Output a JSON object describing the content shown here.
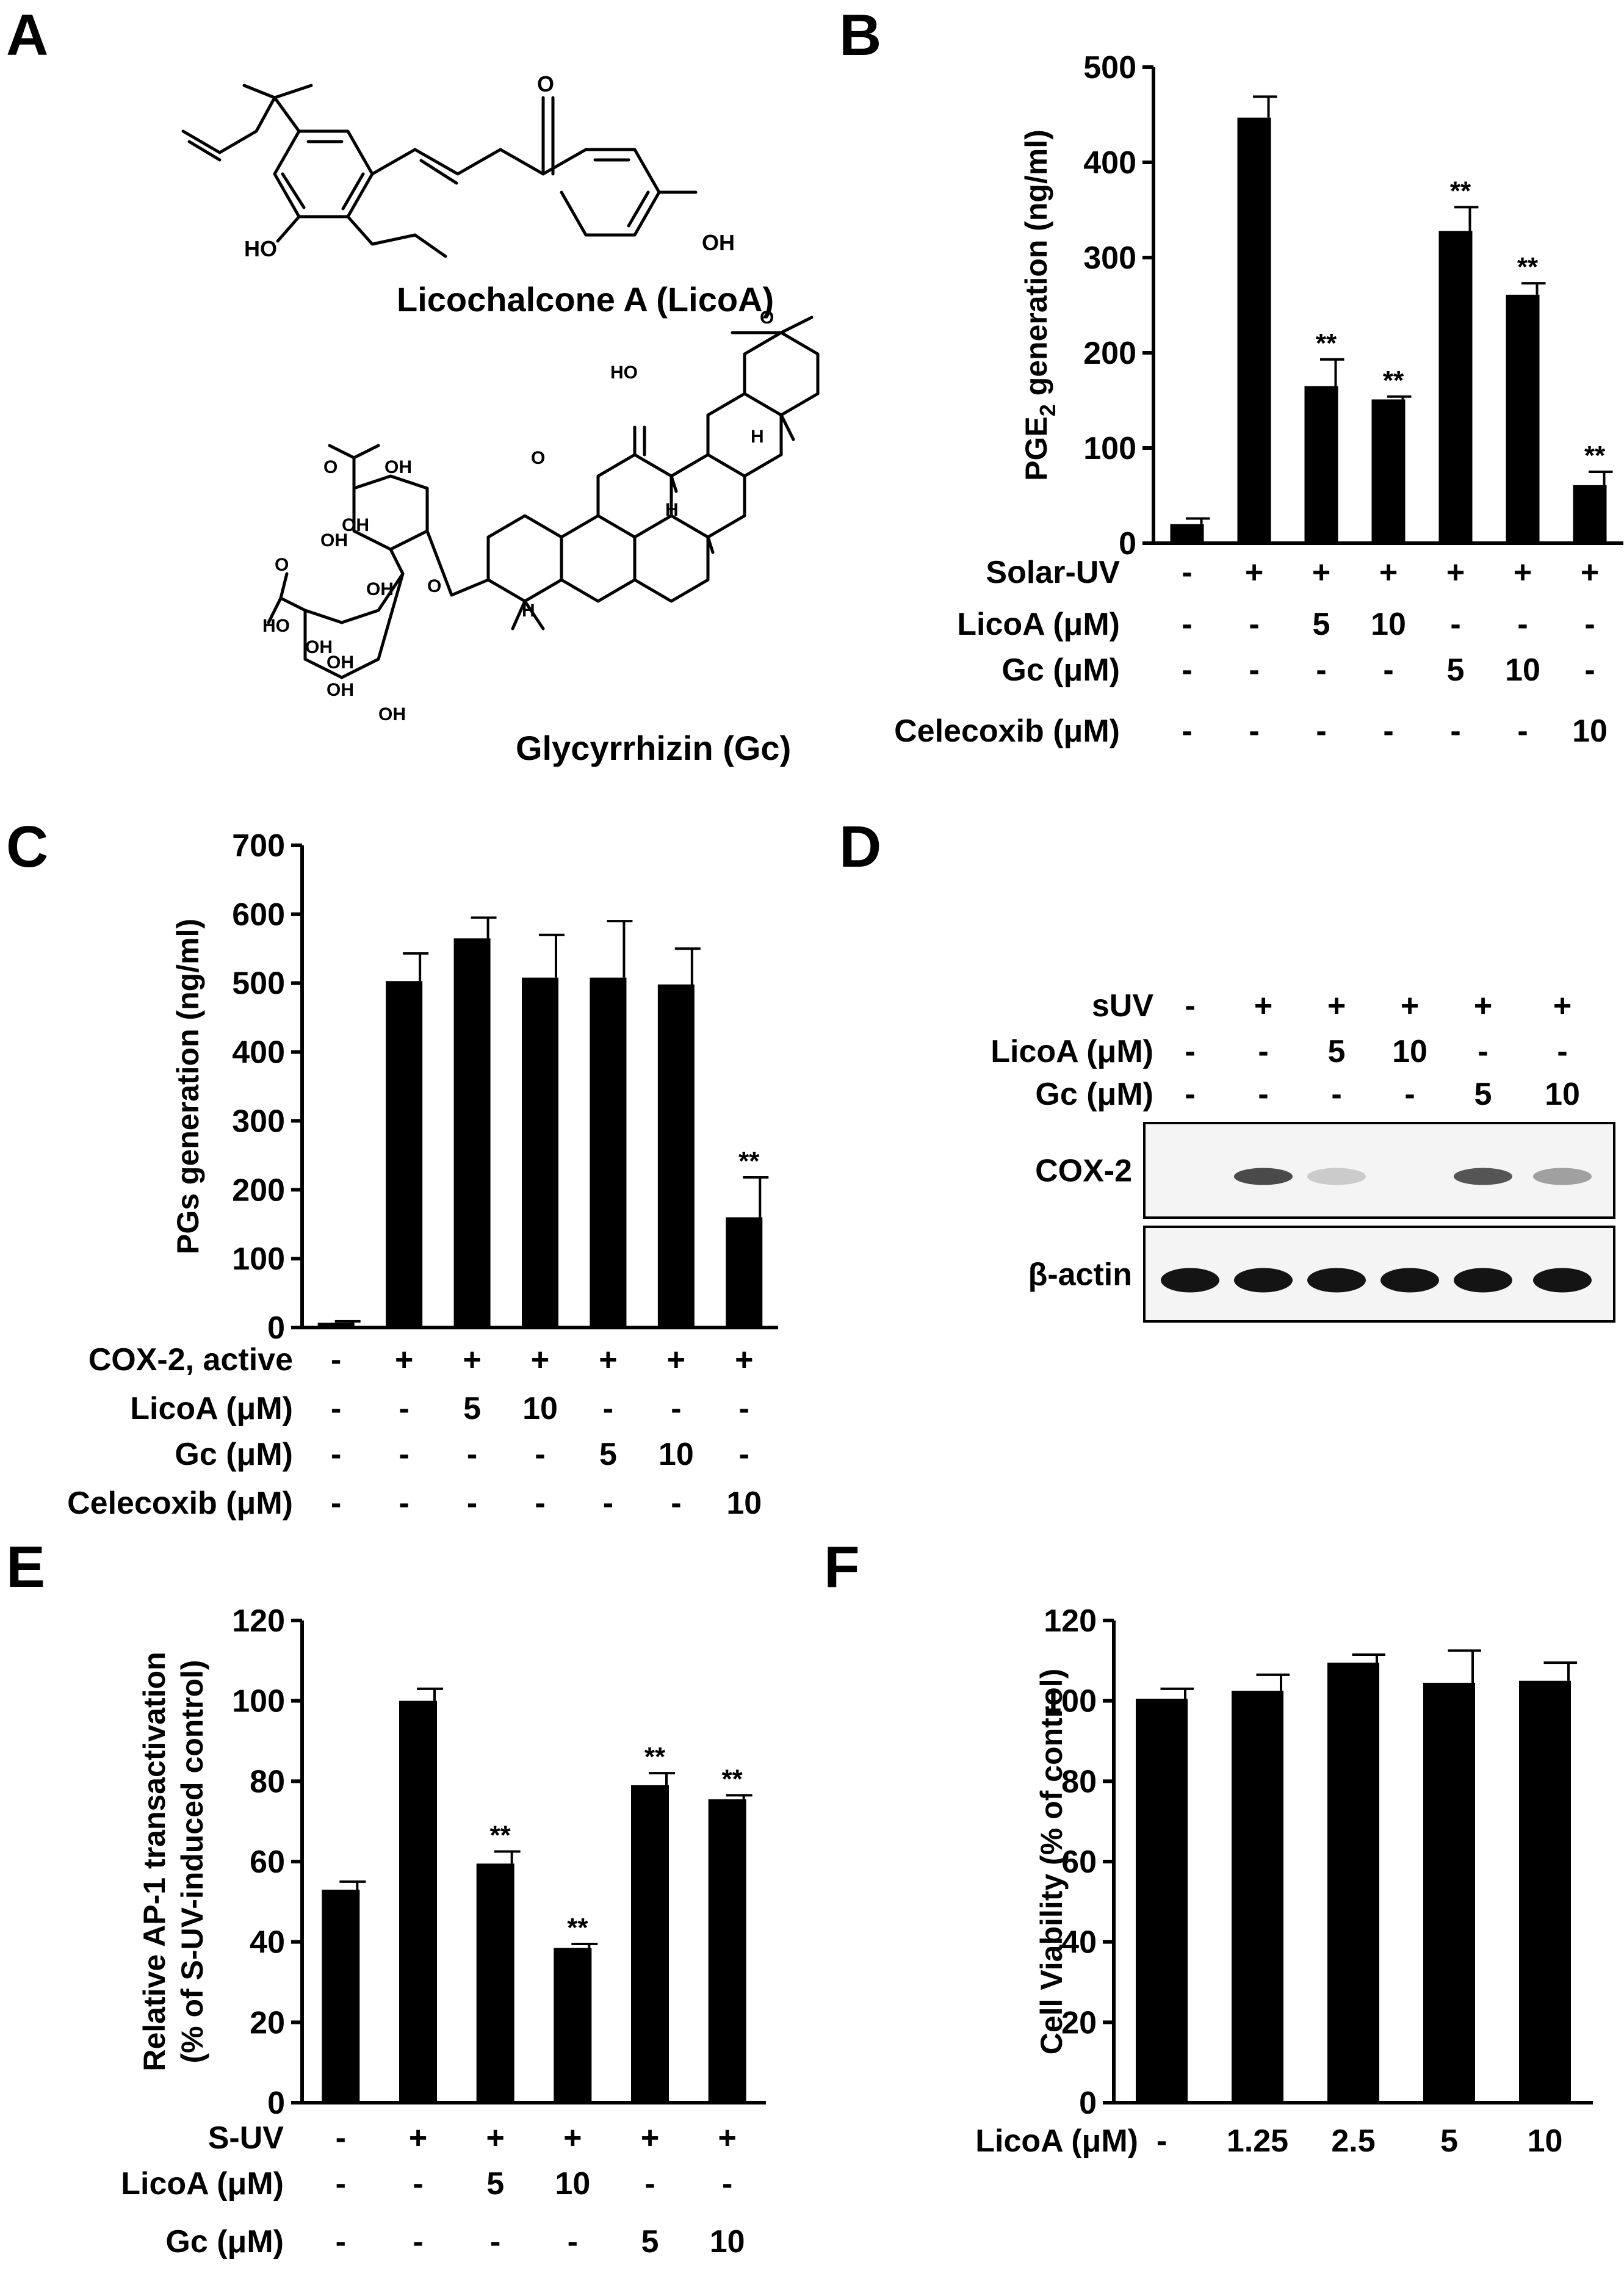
{
  "panels": {
    "A": {
      "letter": "A",
      "compound1": {
        "name": "Licochalcone A (LicoA)",
        "labels": [
          "O",
          "HO",
          "OH"
        ]
      },
      "compound2": {
        "name": "Glycyrrhizin (Gc)",
        "labels": [
          "HO",
          "O",
          "OH",
          "O",
          "OH",
          "OH",
          "OH",
          "O",
          "HO",
          "O",
          "OH",
          "OH",
          "OH",
          "OH",
          "O",
          "H",
          "H",
          "H"
        ]
      }
    },
    "B": {
      "letter": "B"
    },
    "C": {
      "letter": "C"
    },
    "D": {
      "letter": "D",
      "rows": [
        {
          "label": "sUV",
          "cells": [
            "-",
            "+",
            "+",
            "+",
            "+",
            "+"
          ]
        },
        {
          "label": "LicoA (μM)",
          "cells": [
            "-",
            "-",
            "5",
            "10",
            "-",
            "-"
          ]
        },
        {
          "label": "Gc (μM)",
          "cells": [
            "-",
            "-",
            "-",
            "-",
            "5",
            "10"
          ]
        }
      ],
      "blots": [
        {
          "label": "COX-2",
          "band_intensity": [
            0,
            0.75,
            0.15,
            0,
            0.7,
            0.35
          ]
        },
        {
          "label": "β-actin",
          "band_intensity": [
            1,
            1,
            1,
            1,
            1,
            1
          ]
        }
      ]
    },
    "E": {
      "letter": "E"
    },
    "F": {
      "letter": "F"
    }
  },
  "chart_data": [
    {
      "panel": "B",
      "type": "bar",
      "ylabel": "PGE2 generation (ng/ml)",
      "ylabel_parts": [
        "PGE",
        "2",
        " generation (ng/ml)"
      ],
      "ylim": [
        0,
        500
      ],
      "yticks": [
        "0",
        "100",
        "200",
        "300",
        "400",
        "500"
      ],
      "values": [
        20,
        447,
        165,
        151,
        328,
        261,
        61
      ],
      "errors": [
        6,
        22,
        28,
        3,
        25,
        12,
        14
      ],
      "annotations": [
        "",
        "",
        "**",
        "**",
        "**",
        "**",
        "**"
      ],
      "rows": [
        {
          "label": "Solar-UV",
          "cells": [
            "-",
            "+",
            "+",
            "+",
            "+",
            "+",
            "+"
          ]
        },
        {
          "label": "LicoA (μM)",
          "cells": [
            "-",
            "-",
            "5",
            "10",
            "-",
            "-",
            "-"
          ]
        },
        {
          "label": "Gc (μM)",
          "cells": [
            "-",
            "-",
            "-",
            "-",
            "5",
            "10",
            "-"
          ]
        },
        {
          "label": "Celecoxib (μM)",
          "cells": [
            "-",
            "-",
            "-",
            "-",
            "-",
            "-",
            "10"
          ]
        }
      ]
    },
    {
      "panel": "C",
      "type": "bar",
      "ylabel": "PGs generation (ng/ml)",
      "ylim": [
        0,
        700
      ],
      "yticks": [
        "0",
        "100",
        "200",
        "300",
        "400",
        "500",
        "600",
        "700"
      ],
      "values": [
        7,
        503,
        565,
        508,
        508,
        498,
        160
      ],
      "errors": [
        2,
        40,
        30,
        62,
        82,
        52,
        58
      ],
      "annotations": [
        "",
        "",
        "",
        "",
        "",
        "",
        "**"
      ],
      "rows": [
        {
          "label": "COX-2, active",
          "cells": [
            "-",
            "+",
            "+",
            "+",
            "+",
            "+",
            "+"
          ]
        },
        {
          "label": "LicoA (μM)",
          "cells": [
            "-",
            "-",
            "5",
            "10",
            "-",
            "-",
            "-"
          ]
        },
        {
          "label": "Gc (μM)",
          "cells": [
            "-",
            "-",
            "-",
            "-",
            "5",
            "10",
            "-"
          ]
        },
        {
          "label": "Celecoxib (μM)",
          "cells": [
            "-",
            "-",
            "-",
            "-",
            "-",
            "-",
            "10"
          ]
        }
      ]
    },
    {
      "panel": "E",
      "type": "bar",
      "ylabel": "Relative AP-1 transactivation",
      "ylabel2": "(% of S-UV-induced control)",
      "ylim": [
        0,
        120
      ],
      "yticks": [
        "0",
        "20",
        "40",
        "60",
        "80",
        "100",
        "120"
      ],
      "values": [
        53,
        100,
        59.5,
        38.5,
        79,
        75.5
      ],
      "errors": [
        2,
        3,
        3,
        1,
        3,
        1
      ],
      "annotations": [
        "",
        "",
        "**",
        "**",
        "**",
        "**"
      ],
      "rows": [
        {
          "label": "S-UV",
          "cells": [
            "-",
            "+",
            "+",
            "+",
            "+",
            "+"
          ]
        },
        {
          "label": "LicoA (μM)",
          "cells": [
            "-",
            "-",
            "5",
            "10",
            "-",
            "-"
          ]
        },
        {
          "label": "Gc (μM)",
          "cells": [
            "-",
            "-",
            "-",
            "-",
            "5",
            "10"
          ]
        }
      ]
    },
    {
      "panel": "F",
      "type": "bar",
      "ylabel": "Cell Viability (% of control)",
      "ylim": [
        0,
        120
      ],
      "yticks": [
        "0",
        "20",
        "40",
        "60",
        "80",
        "100",
        "120"
      ],
      "values": [
        100.5,
        102.5,
        109.5,
        104.5,
        105
      ],
      "errors": [
        2.5,
        4,
        2,
        8,
        4.5
      ],
      "annotations": [
        "",
        "",
        "",
        "",
        ""
      ],
      "rows": [
        {
          "label": "LicoA (μM)",
          "cells": [
            "-",
            "1.25",
            "2.5",
            "5",
            "10"
          ]
        }
      ]
    }
  ]
}
